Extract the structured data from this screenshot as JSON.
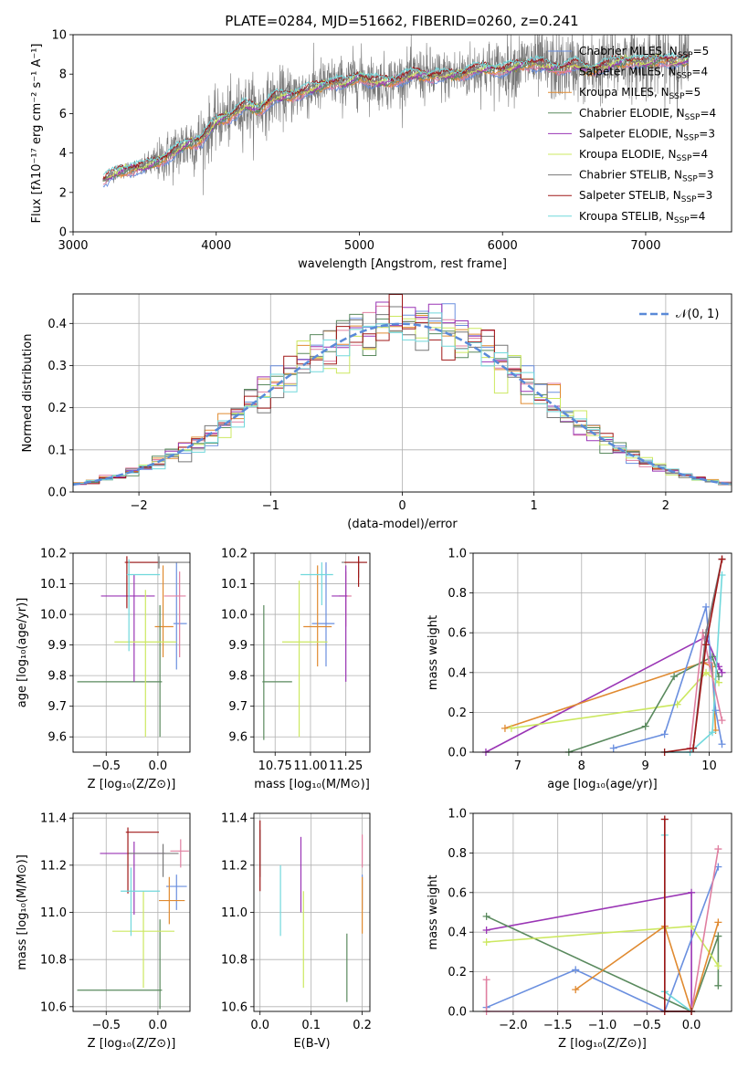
{
  "colors": {
    "chabrier_miles": "#6a8fdf",
    "salpeter_miles": "#e07fa0",
    "kroupa_miles": "#e08a30",
    "chabrier_elodie": "#5a8a5e",
    "salpeter_elodie": "#9a35b5",
    "kroupa_elodie": "#cce860",
    "chabrier_stelib": "#777777",
    "salpeter_stelib": "#a01818",
    "kroupa_stelib": "#70d8dc",
    "normal_curve": "#5a8ad8"
  },
  "chart_data": [
    {
      "id": "spectrum",
      "type": "line",
      "title": "PLATE=0284, MJD=51662, FIBERID=0260, z=0.241",
      "xlabel": "wavelength [Angstrom, rest frame]",
      "ylabel": "Flux [fλ10⁻¹⁷ erg cm⁻² s⁻¹ A⁻¹]",
      "xlim": [
        3000,
        7600
      ],
      "ylim": [
        0,
        10
      ],
      "xticks": [
        "3000",
        "4000",
        "5000",
        "6000",
        "7000"
      ],
      "yticks": [
        "0",
        "2",
        "4",
        "6",
        "8",
        "10"
      ],
      "grid": false,
      "legend_position": "top-right",
      "observed": {
        "x": [
          3210,
          3300,
          3400,
          3500,
          3600,
          3700,
          3800,
          3900,
          4000,
          4100,
          4200,
          4300,
          4400,
          4500,
          4600,
          4700,
          4800,
          4900,
          5000,
          5100,
          5200,
          5300,
          5400,
          5500,
          5600,
          5700,
          5800,
          5900,
          6000,
          6100,
          6200,
          6300,
          6400,
          6500,
          6600,
          6700,
          6800,
          6900,
          7000,
          7100,
          7200,
          7300
        ],
        "y": [
          2.6,
          3.0,
          3.2,
          3.3,
          3.6,
          4.0,
          4.5,
          4.7,
          5.6,
          5.9,
          6.4,
          6.2,
          6.8,
          6.9,
          7.1,
          7.3,
          7.6,
          7.5,
          7.9,
          7.6,
          7.6,
          7.8,
          8.0,
          7.9,
          7.9,
          8.0,
          8.2,
          8.3,
          8.2,
          8.4,
          8.6,
          8.4,
          8.3,
          8.5,
          8.2,
          8.4,
          8.6,
          8.7,
          8.5,
          8.8,
          8.6,
          8.7
        ],
        "noise": [
          0.3,
          0.4,
          0.5,
          0.6,
          1.2,
          1.6,
          1.8,
          1.9,
          1.6,
          1.7,
          1.8,
          1.7,
          1.5,
          1.6,
          1.5,
          1.6,
          1.4,
          1.5,
          1.6,
          1.4,
          1.5,
          1.4,
          1.5,
          1.6,
          1.4,
          1.5,
          1.6,
          1.6,
          1.7,
          1.8,
          1.9,
          1.9,
          2.0,
          1.8,
          1.9,
          2.0,
          2.0,
          1.9,
          2.0,
          2.1,
          2.0,
          2.0
        ]
      },
      "series": [
        {
          "name": "Chabrier MILES, N",
          "sub": "SSP",
          "suffix": "=5",
          "color": "#6a8fdf"
        },
        {
          "name": "Salpeter MILES, N",
          "sub": "SSP",
          "suffix": "=4",
          "color": "#e07fa0"
        },
        {
          "name": "Kroupa MILES, N",
          "sub": "SSP",
          "suffix": "=5",
          "color": "#e08a30"
        },
        {
          "name": "Chabrier ELODIE, N",
          "sub": "SSP",
          "suffix": "=4",
          "color": "#5a8a5e"
        },
        {
          "name": "Salpeter ELODIE, N",
          "sub": "SSP",
          "suffix": "=3",
          "color": "#9a35b5"
        },
        {
          "name": "Kroupa ELODIE, N",
          "sub": "SSP",
          "suffix": "=4",
          "color": "#cce860"
        },
        {
          "name": "Chabrier STELIB, N",
          "sub": "SSP",
          "suffix": "=3",
          "color": "#777777"
        },
        {
          "name": "Salpeter STELIB, N",
          "sub": "SSP",
          "suffix": "=3",
          "color": "#a01818"
        },
        {
          "name": "Kroupa STELIB, N",
          "sub": "SSP",
          "suffix": "=4",
          "color": "#70d8dc"
        }
      ]
    },
    {
      "id": "residuals",
      "type": "line",
      "xlabel": "(data-model)/error",
      "ylabel": "Normed distribution",
      "xlim": [
        -2.5,
        2.5
      ],
      "ylim": [
        0,
        0.47
      ],
      "xticks": [
        "−2",
        "−1",
        "0",
        "1",
        "2"
      ],
      "yticks": [
        "0.0",
        "0.1",
        "0.2",
        "0.3",
        "0.4"
      ],
      "grid": true,
      "legend": "𝒩(0, 1)",
      "legend_position": "top-right",
      "bin_width": 0.1
    },
    {
      "id": "age_vs_Z",
      "type": "scatter",
      "xlabel": "Z [log₁₀(Z/Z⊙)]",
      "ylabel": "age  [log₁₀(age/yr)]",
      "xlim": [
        -0.82,
        0.31
      ],
      "ylim": [
        9.55,
        10.2
      ],
      "xticks": [
        "−0.5",
        "0.0"
      ],
      "yticks": [
        "9.6",
        "9.7",
        "9.8",
        "9.9",
        "10.0",
        "10.1",
        "10.2"
      ],
      "grid": true,
      "points": [
        {
          "x": 0.18,
          "y": 9.97,
          "xe": [
            0.03,
            0.1
          ],
          "ye": [
            0.15,
            0.2
          ],
          "c": "#6a8fdf"
        },
        {
          "x": 0.21,
          "y": 10.06,
          "xe": [
            0.15,
            0.06
          ],
          "ye": [
            0.2,
            0.08
          ],
          "c": "#e07fa0"
        },
        {
          "x": 0.05,
          "y": 9.96,
          "xe": [
            0.08,
            0.1
          ],
          "ye": [
            0.1,
            0.2
          ],
          "c": "#e08a30"
        },
        {
          "x": 0.02,
          "y": 9.78,
          "xe": [
            0.8,
            0.02
          ],
          "ye": [
            0.18,
            0.25
          ],
          "c": "#5a8a5e"
        },
        {
          "x": -0.23,
          "y": 10.06,
          "xe": [
            0.32,
            0.2
          ],
          "ye": [
            0.28,
            0.07
          ],
          "c": "#9a35b5"
        },
        {
          "x": -0.12,
          "y": 9.91,
          "xe": [
            0.3,
            0.3
          ],
          "ye": [
            0.31,
            0.17
          ],
          "c": "#cce860"
        },
        {
          "x": 0.01,
          "y": 10.17,
          "xe": [
            0.28,
            0.3
          ],
          "ye": [
            0.02,
            0.02
          ],
          "c": "#777777"
        },
        {
          "x": -0.3,
          "y": 10.17,
          "xe": [
            0.02,
            0.3
          ],
          "ye": [
            0.15,
            0.02
          ],
          "c": "#a01818"
        },
        {
          "x": -0.28,
          "y": 10.13,
          "xe": [
            0.02,
            0.3
          ],
          "ye": [
            0.25,
            0.05
          ],
          "c": "#70d8dc"
        }
      ]
    },
    {
      "id": "age_vs_mass",
      "type": "scatter",
      "xlabel": "mass [log₁₀(M/M⊙)]",
      "xlim": [
        10.6,
        11.42
      ],
      "ylim": [
        9.55,
        10.2
      ],
      "xticks": [
        "10.75",
        "11.00",
        "11.25"
      ],
      "yticks": [
        "9.6",
        "9.7",
        "9.8",
        "9.9",
        "10.0",
        "10.1",
        "10.2"
      ],
      "grid": true,
      "points": [
        {
          "x": 11.11,
          "y": 9.97,
          "xe": [
            0.1,
            0.06
          ],
          "ye": [
            0.14,
            0.2
          ],
          "c": "#6a8fdf"
        },
        {
          "x": 11.25,
          "y": 10.06,
          "xe": [
            0.05,
            0.04
          ],
          "ye": [
            0.1,
            0.08
          ],
          "c": "#e07fa0"
        },
        {
          "x": 11.05,
          "y": 9.96,
          "xe": [
            0.1,
            0.1
          ],
          "ye": [
            0.13,
            0.2
          ],
          "c": "#e08a30"
        },
        {
          "x": 10.67,
          "y": 9.78,
          "xe": [
            0.01,
            0.2
          ],
          "ye": [
            0.19,
            0.25
          ],
          "c": "#5a8a5e"
        },
        {
          "x": 11.25,
          "y": 10.06,
          "xe": [
            0.1,
            0.01
          ],
          "ye": [
            0.28,
            0.1
          ],
          "c": "#9a35b5"
        },
        {
          "x": 10.92,
          "y": 9.91,
          "xe": [
            0.12,
            0.2
          ],
          "ye": [
            0.31,
            0.2
          ],
          "c": "#cce860"
        },
        {
          "x": 11.34,
          "y": 10.17,
          "xe": [
            0.12,
            0.06
          ],
          "ye": [
            0.05,
            0.02
          ],
          "c": "#777777"
        },
        {
          "x": 11.34,
          "y": 10.17,
          "xe": [
            0.1,
            0.06
          ],
          "ye": [
            0.08,
            0.02
          ],
          "c": "#a01818"
        },
        {
          "x": 11.08,
          "y": 10.13,
          "xe": [
            0.15,
            0.08
          ],
          "ye": [
            0.1,
            0.04
          ],
          "c": "#70d8dc"
        }
      ]
    },
    {
      "id": "mass_vs_Z",
      "type": "scatter",
      "xlabel": "Z [log₁₀(Z/Z⊙)]",
      "ylabel": "mass [log₁₀(M/M⊙)]",
      "xlim": [
        -0.82,
        0.31
      ],
      "ylim": [
        10.58,
        11.42
      ],
      "xticks": [
        "−0.5",
        "0.0"
      ],
      "yticks": [
        "10.6",
        "10.8",
        "11.0",
        "11.2",
        "11.4"
      ],
      "grid": true,
      "points": [
        {
          "x": 0.18,
          "y": 11.11,
          "xe": [
            0.1,
            0.1
          ],
          "ye": [
            0.1,
            0.05
          ],
          "c": "#6a8fdf"
        },
        {
          "x": 0.22,
          "y": 11.26,
          "xe": [
            0.1,
            0.08
          ],
          "ye": [
            0.07,
            0.05
          ],
          "c": "#e07fa0"
        },
        {
          "x": 0.11,
          "y": 11.05,
          "xe": [
            0.1,
            0.15
          ],
          "ye": [
            0.1,
            0.1
          ],
          "c": "#e08a30"
        },
        {
          "x": 0.02,
          "y": 10.67,
          "xe": [
            0.8,
            0.02
          ],
          "ye": [
            0.08,
            0.3
          ],
          "c": "#5a8a5e"
        },
        {
          "x": -0.23,
          "y": 11.25,
          "xe": [
            0.33,
            0.3
          ],
          "ye": [
            0.26,
            0.05
          ],
          "c": "#9a35b5"
        },
        {
          "x": -0.14,
          "y": 10.92,
          "xe": [
            0.3,
            0.3
          ],
          "ye": [
            0.24,
            0.17
          ],
          "c": "#cce860"
        },
        {
          "x": 0.05,
          "y": 11.25,
          "xe": [
            0.34,
            0.15
          ],
          "ye": [
            0.1,
            0.04
          ],
          "c": "#777777"
        },
        {
          "x": -0.29,
          "y": 11.34,
          "xe": [
            0.02,
            0.3
          ],
          "ye": [
            0.26,
            0.02
          ],
          "c": "#a01818"
        },
        {
          "x": -0.26,
          "y": 11.09,
          "xe": [
            0.1,
            0.28
          ],
          "ye": [
            0.19,
            0.1
          ],
          "c": "#70d8dc"
        }
      ]
    },
    {
      "id": "mass_vs_EBV",
      "type": "scatter",
      "xlabel": "E(B-V)",
      "xlim": [
        -0.012,
        0.215
      ],
      "ylim": [
        10.58,
        11.42
      ],
      "xticks": [
        "0.0",
        "0.1",
        "0.2"
      ],
      "yticks": [
        "10.6",
        "10.8",
        "11.0",
        "11.2",
        "11.4"
      ],
      "grid": true,
      "points": [
        {
          "x": 0.2,
          "y": 11.11,
          "ye": [
            0.1,
            0.05
          ],
          "c": "#6a8fdf"
        },
        {
          "x": 0.2,
          "y": 11.26,
          "ye": [
            0.07,
            0.07
          ],
          "c": "#e07fa0"
        },
        {
          "x": 0.2,
          "y": 11.05,
          "ye": [
            0.14,
            0.1
          ],
          "c": "#e08a30"
        },
        {
          "x": 0.17,
          "y": 10.78,
          "ye": [
            0.16,
            0.13
          ],
          "c": "#5a8a5e"
        },
        {
          "x": 0.08,
          "y": 11.16,
          "ye": [
            0.16,
            0.16
          ],
          "c": "#9a35b5"
        },
        {
          "x": 0.085,
          "y": 10.92,
          "ye": [
            0.24,
            0.17
          ],
          "c": "#cce860"
        },
        {
          "x": 0.0,
          "y": 11.25,
          "ye": [
            0.1,
            0.1
          ],
          "c": "#777777"
        },
        {
          "x": 0.0,
          "y": 11.25,
          "ye": [
            0.16,
            0.14
          ],
          "c": "#a01818"
        },
        {
          "x": 0.04,
          "y": 11.06,
          "ye": [
            0.16,
            0.14
          ],
          "c": "#70d8dc"
        }
      ]
    },
    {
      "id": "weight_vs_age",
      "type": "line",
      "xlabel": "age  [log₁₀(age/yr)]",
      "ylabel": "mass weight",
      "xlim": [
        6.3,
        10.35
      ],
      "ylim": [
        0,
        1
      ],
      "xticks": [
        "7",
        "8",
        "9",
        "10"
      ],
      "yticks": [
        "0.0",
        "0.2",
        "0.4",
        "0.6",
        "0.8",
        "1.0"
      ],
      "grid": true,
      "series": [
        {
          "c": "#9a35b5",
          "x": [
            6.5,
            9.95,
            10.15,
            10.2
          ],
          "y": [
            0.0,
            0.58,
            0.43,
            0.4
          ]
        },
        {
          "c": "#e08a30",
          "x": [
            6.8,
            9.9,
            10.05,
            10.1
          ],
          "y": [
            0.12,
            0.45,
            0.43,
            0.11
          ]
        },
        {
          "c": "#cce860",
          "x": [
            6.9,
            9.5,
            9.95,
            10.15
          ],
          "y": [
            0.12,
            0.24,
            0.4,
            0.35
          ]
        },
        {
          "c": "#5a8a5e",
          "x": [
            7.8,
            9.0,
            9.45,
            10.05,
            10.15
          ],
          "y": [
            0.0,
            0.13,
            0.38,
            0.48,
            0.38
          ]
        },
        {
          "c": "#6a8fdf",
          "x": [
            8.5,
            9.3,
            9.95,
            10.1,
            10.2
          ],
          "y": [
            0.02,
            0.09,
            0.73,
            0.21,
            0.04
          ]
        },
        {
          "c": "#70d8dc",
          "x": [
            9.3,
            9.7,
            10.05,
            10.2
          ],
          "y": [
            0.0,
            0.0,
            0.1,
            0.89
          ]
        },
        {
          "c": "#e07fa0",
          "x": [
            9.7,
            9.9,
            10.0,
            10.2
          ],
          "y": [
            0.02,
            0.6,
            0.45,
            0.16
          ]
        },
        {
          "c": "#777777",
          "x": [
            9.75,
            9.95,
            10.2
          ],
          "y": [
            0.02,
            0.6,
            0.97
          ]
        },
        {
          "c": "#a01818",
          "x": [
            9.3,
            9.75,
            9.95,
            10.2
          ],
          "y": [
            0.0,
            0.02,
            0.54,
            0.97
          ]
        }
      ]
    },
    {
      "id": "weight_vs_Z",
      "type": "line",
      "xlabel": "Z [log₁₀(Z/Z⊙)]",
      "ylabel": "mass weight",
      "xlim": [
        -2.45,
        0.45
      ],
      "ylim": [
        0,
        1
      ],
      "xticks": [
        "−2.0",
        "−1.5",
        "−1.0",
        "−0.5",
        "0.0"
      ],
      "yticks": [
        "0.0",
        "0.2",
        "0.4",
        "0.6",
        "0.8",
        "1.0"
      ],
      "grid": true,
      "series": [
        {
          "c": "#9a35b5",
          "x": [
            -2.3,
            0.0,
            0.0,
            -0.3
          ],
          "y": [
            0.41,
            0.6,
            0.0,
            0.0
          ]
        },
        {
          "c": "#5a8a5e",
          "x": [
            -2.3,
            0.0,
            0.3,
            0.3
          ],
          "y": [
            0.48,
            0.0,
            0.38,
            0.13
          ]
        },
        {
          "c": "#cce860",
          "x": [
            -2.3,
            0.0,
            0.3
          ],
          "y": [
            0.35,
            0.43,
            0.23
          ]
        },
        {
          "c": "#6a8fdf",
          "x": [
            -2.3,
            -1.3,
            -0.3,
            0.3
          ],
          "y": [
            0.02,
            0.21,
            0.0,
            0.73
          ]
        },
        {
          "c": "#e08a30",
          "x": [
            -1.3,
            -0.3,
            0.0,
            0.3
          ],
          "y": [
            0.11,
            0.43,
            0.0,
            0.45
          ]
        },
        {
          "c": "#e07fa0",
          "x": [
            -2.3,
            -2.3,
            0.0,
            0.3
          ],
          "y": [
            0.16,
            0.0,
            0.0,
            0.82
          ]
        },
        {
          "c": "#70d8dc",
          "x": [
            -0.3,
            -0.3,
            0.0
          ],
          "y": [
            0.89,
            0.1,
            0.0
          ]
        },
        {
          "c": "#777777",
          "x": [
            -0.3,
            -0.3,
            0.0
          ],
          "y": [
            0.97,
            0.0,
            0.0
          ]
        },
        {
          "c": "#a01818",
          "x": [
            -0.3,
            -0.3,
            0.0
          ],
          "y": [
            0.97,
            0.0,
            0.0
          ]
        }
      ]
    }
  ]
}
